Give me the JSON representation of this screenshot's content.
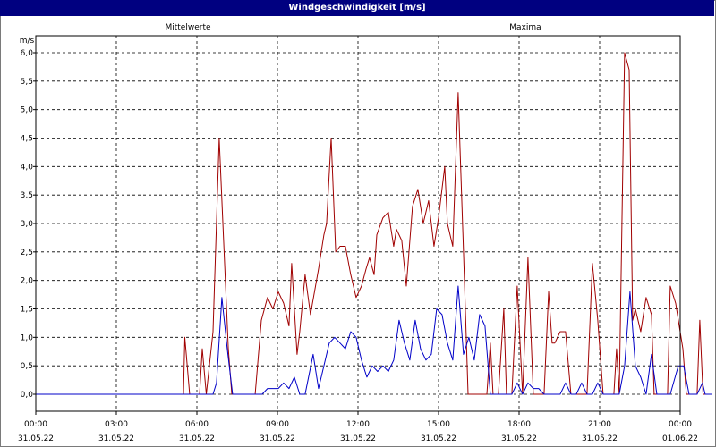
{
  "window": {
    "title": "Windgeschwindigkeit [m/s]"
  },
  "chart_data": {
    "type": "line",
    "title": "Windgeschwindigkeit [m/s]",
    "ylabel": "m/s",
    "ylim": [
      0,
      6
    ],
    "yticks": [
      "0,0",
      "0,5",
      "1,0",
      "1,5",
      "2,0",
      "2,5",
      "3,0",
      "3,5",
      "4,0",
      "4,5",
      "5,0",
      "5,5",
      "6,0"
    ],
    "xlim_hours": [
      0,
      24
    ],
    "xticks": [
      {
        "time": "00:00",
        "date": "31.05.22"
      },
      {
        "time": "03:00",
        "date": "31.05.22"
      },
      {
        "time": "06:00",
        "date": "31.05.22"
      },
      {
        "time": "09:00",
        "date": "31.05.22"
      },
      {
        "time": "12:00",
        "date": "31.05.22"
      },
      {
        "time": "15:00",
        "date": "31.05.22"
      },
      {
        "time": "18:00",
        "date": "31.05.22"
      },
      {
        "time": "21:00",
        "date": "31.05.22"
      },
      {
        "time": "00:00",
        "date": "01.06.22"
      }
    ],
    "grid": true,
    "series": [
      {
        "name": "Maxima",
        "color": "#a00000",
        "points": [
          [
            0.0,
            0.0
          ],
          [
            5.5,
            0.0
          ],
          [
            5.55,
            1.0
          ],
          [
            5.73,
            0.0
          ],
          [
            6.1,
            0.0
          ],
          [
            6.2,
            0.8
          ],
          [
            6.35,
            0.0
          ],
          [
            6.6,
            1.1
          ],
          [
            6.83,
            4.5
          ],
          [
            7.17,
            0.8
          ],
          [
            7.3,
            0.0
          ],
          [
            7.8,
            0.0
          ],
          [
            8.17,
            0.0
          ],
          [
            8.4,
            1.3
          ],
          [
            8.63,
            1.7
          ],
          [
            8.83,
            1.5
          ],
          [
            9.03,
            1.8
          ],
          [
            9.23,
            1.6
          ],
          [
            9.43,
            1.2
          ],
          [
            9.53,
            2.3
          ],
          [
            9.73,
            0.7
          ],
          [
            9.83,
            1.1
          ],
          [
            10.03,
            2.1
          ],
          [
            10.23,
            1.4
          ],
          [
            10.53,
            2.2
          ],
          [
            10.73,
            2.8
          ],
          [
            10.83,
            3.0
          ],
          [
            11.0,
            4.5
          ],
          [
            11.17,
            2.5
          ],
          [
            11.33,
            2.6
          ],
          [
            11.53,
            2.6
          ],
          [
            11.73,
            2.1
          ],
          [
            11.93,
            1.7
          ],
          [
            12.13,
            1.9
          ],
          [
            12.3,
            2.2
          ],
          [
            12.43,
            2.4
          ],
          [
            12.6,
            2.1
          ],
          [
            12.7,
            2.8
          ],
          [
            12.93,
            3.1
          ],
          [
            13.13,
            3.2
          ],
          [
            13.33,
            2.6
          ],
          [
            13.43,
            2.9
          ],
          [
            13.63,
            2.7
          ],
          [
            13.8,
            1.9
          ],
          [
            14.03,
            3.3
          ],
          [
            14.23,
            3.6
          ],
          [
            14.43,
            3.0
          ],
          [
            14.63,
            3.4
          ],
          [
            14.83,
            2.6
          ],
          [
            15.0,
            3.1
          ],
          [
            15.23,
            4.0
          ],
          [
            15.33,
            3.0
          ],
          [
            15.53,
            2.6
          ],
          [
            15.73,
            5.3
          ],
          [
            15.93,
            2.5
          ],
          [
            16.1,
            0.0
          ],
          [
            16.5,
            0.0
          ],
          [
            16.7,
            0.0
          ],
          [
            16.8,
            0.0
          ],
          [
            16.93,
            0.9
          ],
          [
            17.03,
            0.0
          ],
          [
            17.23,
            0.0
          ],
          [
            17.43,
            1.5
          ],
          [
            17.53,
            0.0
          ],
          [
            17.73,
            0.0
          ],
          [
            17.93,
            1.9
          ],
          [
            18.13,
            0.0
          ],
          [
            18.33,
            2.4
          ],
          [
            18.53,
            0.0
          ],
          [
            18.73,
            0.0
          ],
          [
            18.93,
            0.0
          ],
          [
            19.1,
            1.8
          ],
          [
            19.23,
            0.9
          ],
          [
            19.33,
            0.9
          ],
          [
            19.53,
            1.1
          ],
          [
            19.73,
            1.1
          ],
          [
            19.93,
            0.0
          ],
          [
            20.23,
            0.0
          ],
          [
            20.33,
            0.0
          ],
          [
            20.53,
            0.0
          ],
          [
            20.73,
            2.3
          ],
          [
            20.93,
            1.3
          ],
          [
            21.13,
            0.0
          ],
          [
            21.33,
            0.0
          ],
          [
            21.53,
            0.0
          ],
          [
            21.63,
            0.8
          ],
          [
            21.73,
            0.0
          ],
          [
            21.93,
            6.0
          ],
          [
            22.1,
            5.7
          ],
          [
            22.23,
            1.3
          ],
          [
            22.33,
            1.5
          ],
          [
            22.53,
            1.1
          ],
          [
            22.73,
            1.7
          ],
          [
            22.93,
            1.4
          ],
          [
            23.03,
            0.0
          ],
          [
            23.23,
            0.0
          ],
          [
            23.53,
            0.0
          ],
          [
            23.63,
            1.9
          ],
          [
            23.83,
            1.6
          ],
          [
            24.1,
            0.8
          ],
          [
            24.23,
            0.0
          ],
          [
            24.63,
            0.0
          ],
          [
            24.73,
            1.3
          ],
          [
            24.85,
            0.0
          ],
          [
            25.2,
            0.0
          ]
        ]
      },
      {
        "name": "Mittelwerte",
        "color": "#0000c8",
        "points": [
          [
            0.0,
            0.0
          ],
          [
            6.6,
            0.0
          ],
          [
            6.73,
            0.2
          ],
          [
            6.93,
            1.7
          ],
          [
            7.13,
            0.8
          ],
          [
            7.33,
            0.0
          ],
          [
            8.43,
            0.0
          ],
          [
            8.63,
            0.1
          ],
          [
            9.03,
            0.1
          ],
          [
            9.23,
            0.2
          ],
          [
            9.43,
            0.1
          ],
          [
            9.63,
            0.3
          ],
          [
            9.83,
            0.0
          ],
          [
            10.03,
            0.0
          ],
          [
            10.33,
            0.7
          ],
          [
            10.53,
            0.1
          ],
          [
            10.73,
            0.5
          ],
          [
            10.93,
            0.9
          ],
          [
            11.13,
            1.0
          ],
          [
            11.33,
            0.9
          ],
          [
            11.53,
            0.8
          ],
          [
            11.73,
            1.1
          ],
          [
            11.93,
            1.0
          ],
          [
            12.13,
            0.6
          ],
          [
            12.33,
            0.3
          ],
          [
            12.53,
            0.5
          ],
          [
            12.73,
            0.4
          ],
          [
            12.93,
            0.5
          ],
          [
            13.13,
            0.4
          ],
          [
            13.33,
            0.6
          ],
          [
            13.53,
            1.3
          ],
          [
            13.73,
            0.9
          ],
          [
            13.93,
            0.6
          ],
          [
            14.13,
            1.3
          ],
          [
            14.33,
            0.8
          ],
          [
            14.53,
            0.6
          ],
          [
            14.73,
            0.7
          ],
          [
            14.93,
            1.5
          ],
          [
            15.13,
            1.4
          ],
          [
            15.33,
            0.9
          ],
          [
            15.53,
            0.6
          ],
          [
            15.73,
            1.9
          ],
          [
            15.93,
            0.7
          ],
          [
            16.13,
            1.0
          ],
          [
            16.33,
            0.6
          ],
          [
            16.53,
            1.4
          ],
          [
            16.73,
            1.2
          ],
          [
            16.93,
            0.0
          ],
          [
            17.73,
            0.0
          ],
          [
            17.93,
            0.2
          ],
          [
            18.13,
            0.0
          ],
          [
            18.33,
            0.2
          ],
          [
            18.53,
            0.1
          ],
          [
            18.73,
            0.1
          ],
          [
            18.93,
            0.0
          ],
          [
            19.53,
            0.0
          ],
          [
            19.73,
            0.2
          ],
          [
            19.93,
            0.0
          ],
          [
            20.13,
            0.0
          ],
          [
            20.33,
            0.2
          ],
          [
            20.53,
            0.0
          ],
          [
            20.73,
            0.0
          ],
          [
            20.93,
            0.2
          ],
          [
            21.13,
            0.0
          ],
          [
            21.33,
            0.0
          ],
          [
            21.73,
            0.0
          ],
          [
            21.93,
            0.5
          ],
          [
            22.13,
            1.8
          ],
          [
            22.33,
            0.5
          ],
          [
            22.53,
            0.3
          ],
          [
            22.73,
            0.0
          ],
          [
            22.93,
            0.7
          ],
          [
            23.13,
            0.0
          ],
          [
            23.33,
            0.0
          ],
          [
            23.63,
            0.0
          ],
          [
            23.93,
            0.5
          ],
          [
            24.13,
            0.5
          ],
          [
            24.33,
            0.0
          ],
          [
            24.63,
            0.0
          ],
          [
            24.83,
            0.2
          ],
          [
            24.93,
            0.0
          ],
          [
            25.2,
            0.0
          ]
        ]
      }
    ]
  }
}
